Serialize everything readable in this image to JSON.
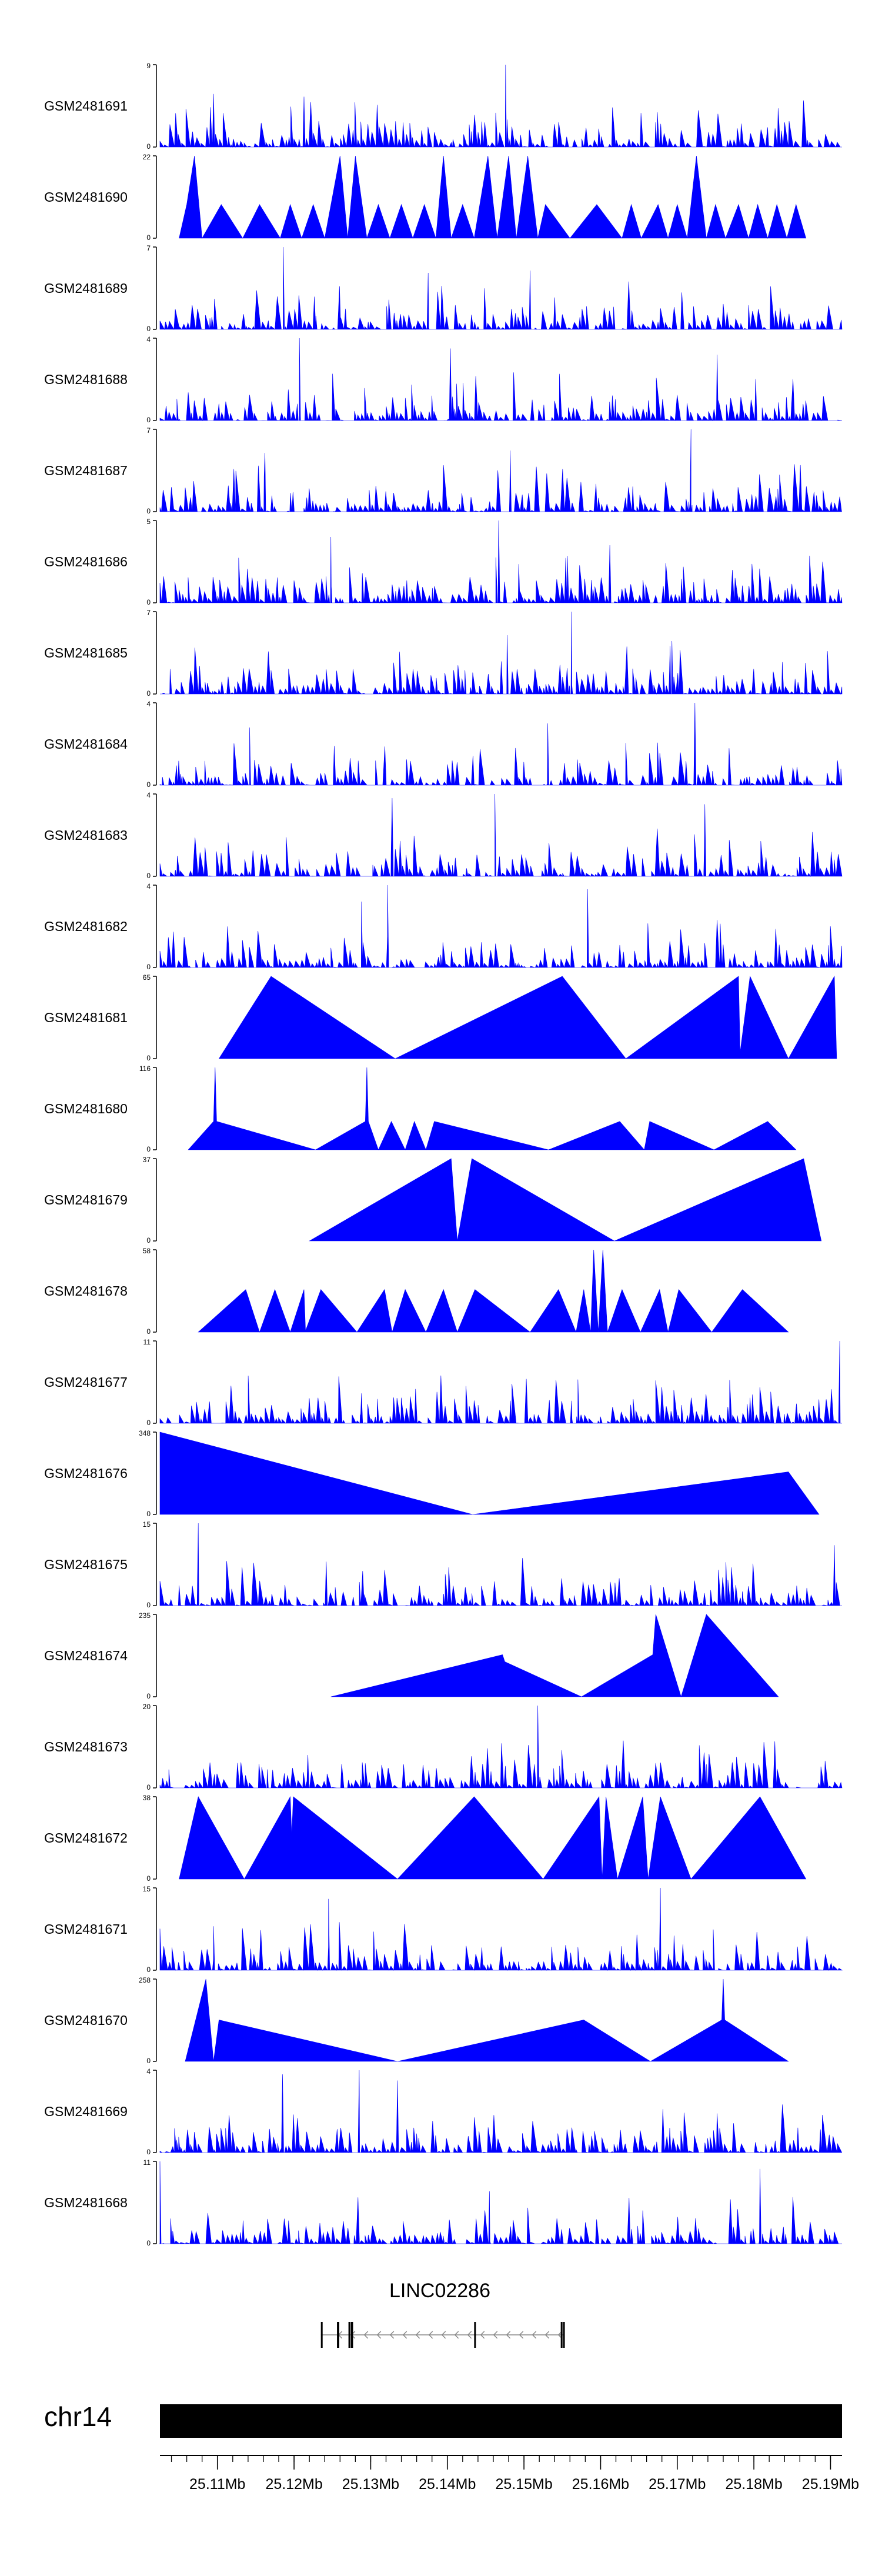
{
  "chart_data": {
    "type": "area",
    "figure": "coverage-tracks",
    "fill_color": "#0000ff",
    "axis_color": "#000000",
    "chromosome": "chr14",
    "genome_range_mb": [
      25.1025,
      25.1915
    ],
    "tracks": [
      {
        "name": "GSM2481691",
        "ymax": "9",
        "shape": "dense",
        "peaks": [
          [
            25.1476,
            9
          ],
          [
            25.1213,
            5.5
          ],
          [
            25.1095,
            5.8
          ]
        ]
      },
      {
        "name": "GSM2481690",
        "ymax": "22",
        "shape": "sparse",
        "points": [
          [
            25.105,
            0
          ],
          [
            25.106,
            9
          ],
          [
            25.107,
            22
          ],
          [
            25.108,
            0
          ],
          [
            25.1105,
            9
          ],
          [
            25.1133,
            0
          ],
          [
            25.1155,
            9
          ],
          [
            25.1182,
            0
          ],
          [
            25.1195,
            9
          ],
          [
            25.121,
            0
          ],
          [
            25.1225,
            9
          ],
          [
            25.124,
            0
          ],
          [
            25.126,
            22
          ],
          [
            25.127,
            0
          ],
          [
            25.128,
            22
          ],
          [
            25.1295,
            0
          ],
          [
            25.131,
            9
          ],
          [
            25.1325,
            0
          ],
          [
            25.134,
            9
          ],
          [
            25.1355,
            0
          ],
          [
            25.137,
            9
          ],
          [
            25.1385,
            0
          ],
          [
            25.1395,
            22
          ],
          [
            25.1405,
            0
          ],
          [
            25.142,
            9
          ],
          [
            25.1435,
            0
          ],
          [
            25.1453,
            22
          ],
          [
            25.1465,
            0
          ],
          [
            25.148,
            22
          ],
          [
            25.149,
            0
          ],
          [
            25.1505,
            22
          ],
          [
            25.1518,
            0
          ],
          [
            25.1528,
            9
          ],
          [
            25.156,
            0
          ],
          [
            25.1595,
            9
          ],
          [
            25.1628,
            0
          ],
          [
            25.164,
            9
          ],
          [
            25.1653,
            0
          ],
          [
            25.1675,
            9
          ],
          [
            25.1688,
            0
          ],
          [
            25.17,
            9
          ],
          [
            25.1713,
            0
          ],
          [
            25.1725,
            22
          ],
          [
            25.1738,
            0
          ],
          [
            25.175,
            9
          ],
          [
            25.1763,
            0
          ],
          [
            25.178,
            9
          ],
          [
            25.1793,
            0
          ],
          [
            25.1805,
            9
          ],
          [
            25.1818,
            0
          ],
          [
            25.183,
            9
          ],
          [
            25.1843,
            0
          ],
          [
            25.1855,
            9
          ],
          [
            25.1868,
            0
          ]
        ]
      },
      {
        "name": "GSM2481689",
        "ymax": "7",
        "shape": "dense",
        "peaks": [
          [
            25.1186,
            7
          ],
          [
            25.1508,
            5
          ],
          [
            25.1375,
            4.8
          ]
        ]
      },
      {
        "name": "GSM2481688",
        "ymax": "4",
        "shape": "dense",
        "peaks": [
          [
            25.1207,
            4
          ],
          [
            25.1404,
            3.5
          ],
          [
            25.1752,
            3.2
          ]
        ]
      },
      {
        "name": "GSM2481687",
        "ymax": "7",
        "shape": "dense",
        "peaks": [
          [
            25.1718,
            7
          ],
          [
            25.1482,
            5.2
          ],
          [
            25.1162,
            5
          ]
        ]
      },
      {
        "name": "GSM2481686",
        "ymax": "5",
        "shape": "dense",
        "peaks": [
          [
            25.1467,
            5
          ],
          [
            25.1248,
            4
          ],
          [
            25.1612,
            3.5
          ]
        ]
      },
      {
        "name": "GSM2481685",
        "ymax": "7",
        "shape": "dense",
        "peaks": [
          [
            25.1562,
            7
          ],
          [
            25.1478,
            5
          ],
          [
            25.1693,
            4.5
          ]
        ]
      },
      {
        "name": "GSM2481684",
        "ymax": "4",
        "shape": "dense",
        "peaks": [
          [
            25.1723,
            4
          ],
          [
            25.1531,
            3
          ],
          [
            25.1142,
            2.8
          ]
        ]
      },
      {
        "name": "GSM2481683",
        "ymax": "4",
        "shape": "dense",
        "peaks": [
          [
            25.1462,
            4
          ],
          [
            25.1328,
            3.8
          ],
          [
            25.1736,
            3.5
          ]
        ]
      },
      {
        "name": "GSM2481682",
        "ymax": "4",
        "shape": "dense",
        "peaks": [
          [
            25.1322,
            4
          ],
          [
            25.1583,
            3.8
          ],
          [
            25.1288,
            3.2
          ]
        ]
      },
      {
        "name": "GSM2481681",
        "ymax": "65",
        "shape": "sparse",
        "points": [
          [
            25.1102,
            0
          ],
          [
            25.117,
            65
          ],
          [
            25.1332,
            0
          ],
          [
            25.155,
            65
          ],
          [
            25.1633,
            0
          ],
          [
            25.178,
            65
          ],
          [
            25.1782,
            5
          ],
          [
            25.1795,
            65
          ],
          [
            25.1845,
            0
          ],
          [
            25.1905,
            65
          ],
          [
            25.1908,
            0
          ]
        ]
      },
      {
        "name": "GSM2481680",
        "ymax": "116",
        "shape": "sparse",
        "points": [
          [
            25.1062,
            0
          ],
          [
            25.1095,
            40
          ],
          [
            25.1097,
            116
          ],
          [
            25.1099,
            40
          ],
          [
            25.1228,
            0
          ],
          [
            25.1293,
            40
          ],
          [
            25.1295,
            116
          ],
          [
            25.1297,
            40
          ],
          [
            25.131,
            0
          ],
          [
            25.1327,
            40
          ],
          [
            25.1345,
            0
          ],
          [
            25.1357,
            40
          ],
          [
            25.1372,
            0
          ],
          [
            25.1383,
            40
          ],
          [
            25.1532,
            0
          ],
          [
            25.1625,
            40
          ],
          [
            25.1657,
            0
          ],
          [
            25.1664,
            40
          ],
          [
            25.1748,
            0
          ],
          [
            25.1818,
            40
          ],
          [
            25.1855,
            0
          ]
        ]
      },
      {
        "name": "GSM2481679",
        "ymax": "37",
        "shape": "sparse",
        "points": [
          [
            25.122,
            0
          ],
          [
            25.1405,
            37
          ],
          [
            25.1413,
            0
          ],
          [
            25.1432,
            37
          ],
          [
            25.1618,
            0
          ],
          [
            25.1865,
            37
          ],
          [
            25.1888,
            0
          ]
        ]
      },
      {
        "name": "GSM2481678",
        "ymax": "58",
        "shape": "sparse",
        "points": [
          [
            25.1075,
            0
          ],
          [
            25.1137,
            30
          ],
          [
            25.1155,
            0
          ],
          [
            25.1175,
            30
          ],
          [
            25.1195,
            0
          ],
          [
            25.1213,
            30
          ],
          [
            25.1215,
            1
          ],
          [
            25.1235,
            30
          ],
          [
            25.1282,
            0
          ],
          [
            25.1318,
            30
          ],
          [
            25.1328,
            0
          ],
          [
            25.1345,
            30
          ],
          [
            25.1372,
            0
          ],
          [
            25.1395,
            30
          ],
          [
            25.1413,
            0
          ],
          [
            25.1436,
            30
          ],
          [
            25.1508,
            0
          ],
          [
            25.1545,
            30
          ],
          [
            25.1568,
            0
          ],
          [
            25.1578,
            30
          ],
          [
            25.1587,
            0
          ],
          [
            25.1591,
            58
          ],
          [
            25.1597,
            0
          ],
          [
            25.1603,
            58
          ],
          [
            25.1609,
            0
          ],
          [
            25.1628,
            30
          ],
          [
            25.1652,
            0
          ],
          [
            25.1677,
            30
          ],
          [
            25.1688,
            0
          ],
          [
            25.1702,
            30
          ],
          [
            25.1745,
            0
          ],
          [
            25.1785,
            30
          ],
          [
            25.1845,
            0
          ]
        ]
      },
      {
        "name": "GSM2481677",
        "ymax": "11",
        "shape": "dense",
        "peaks": [
          [
            25.1912,
            11
          ],
          [
            25.1288,
            4
          ],
          [
            25.1562,
            3
          ]
        ]
      },
      {
        "name": "GSM2481676",
        "ymax": "348",
        "shape": "sparse",
        "points": [
          [
            25.1025,
            348
          ],
          [
            25.1433,
            0
          ],
          [
            25.1845,
            180
          ],
          [
            25.1885,
            0
          ]
        ]
      },
      {
        "name": "GSM2481675",
        "ymax": "15",
        "shape": "dense",
        "peaks": [
          [
            25.1075,
            15
          ],
          [
            25.1242,
            8
          ],
          [
            25.1905,
            11
          ]
        ]
      },
      {
        "name": "GSM2481674",
        "ymax": "235",
        "shape": "sparse",
        "points": [
          [
            25.1248,
            0
          ],
          [
            25.1472,
            120
          ],
          [
            25.1475,
            100
          ],
          [
            25.1575,
            0
          ],
          [
            25.1668,
            120
          ],
          [
            25.1672,
            235
          ],
          [
            25.1705,
            0
          ],
          [
            25.1738,
            235
          ],
          [
            25.1832,
            0
          ]
        ]
      },
      {
        "name": "GSM2481673",
        "ymax": "20",
        "shape": "dense",
        "peaks": [
          [
            25.1518,
            20
          ],
          [
            25.1218,
            8
          ],
          [
            25.1165,
            4.5
          ]
        ]
      },
      {
        "name": "GSM2481672",
        "ymax": "38",
        "shape": "sparse",
        "points": [
          [
            25.105,
            0
          ],
          [
            25.1075,
            38
          ],
          [
            25.1135,
            0
          ],
          [
            25.1195,
            38
          ],
          [
            25.1197,
            20
          ],
          [
            25.1199,
            38
          ],
          [
            25.1335,
            0
          ],
          [
            25.1435,
            38
          ],
          [
            25.1525,
            0
          ],
          [
            25.1598,
            38
          ],
          [
            25.1602,
            0
          ],
          [
            25.1607,
            38
          ],
          [
            25.1622,
            0
          ],
          [
            25.1655,
            38
          ],
          [
            25.1662,
            0
          ],
          [
            25.1678,
            38
          ],
          [
            25.1718,
            0
          ],
          [
            25.1808,
            38
          ],
          [
            25.1868,
            0
          ]
        ]
      },
      {
        "name": "GSM2481671",
        "ymax": "15",
        "shape": "dense",
        "peaks": [
          [
            25.1678,
            15
          ],
          [
            25.1245,
            13
          ],
          [
            25.1095,
            8
          ]
        ]
      },
      {
        "name": "GSM2481670",
        "ymax": "258",
        "shape": "sparse",
        "points": [
          [
            25.1058,
            0
          ],
          [
            25.1085,
            258
          ],
          [
            25.1095,
            0
          ],
          [
            25.1102,
            130
          ],
          [
            25.1335,
            0
          ],
          [
            25.1578,
            130
          ],
          [
            25.1665,
            0
          ],
          [
            25.1758,
            130
          ],
          [
            25.176,
            258
          ],
          [
            25.1762,
            130
          ],
          [
            25.1845,
            0
          ]
        ]
      },
      {
        "name": "GSM2481669",
        "ymax": "4",
        "shape": "dense",
        "peaks": [
          [
            25.1285,
            4
          ],
          [
            25.1185,
            3.8
          ],
          [
            25.1335,
            3.5
          ]
        ]
      },
      {
        "name": "GSM2481668",
        "ymax": "11",
        "shape": "dense",
        "peaks": [
          [
            25.1025,
            11
          ],
          [
            25.1808,
            10
          ],
          [
            25.1455,
            7
          ]
        ]
      }
    ],
    "gene": {
      "name": "LINC02286",
      "strand": "-",
      "start_mb": 25.1235,
      "end_mb": 25.1553,
      "exons_mb": [
        [
          25.1235,
          25.1237
        ],
        [
          25.1256,
          25.1259
        ],
        [
          25.1274,
          25.1277
        ],
        [
          25.1271,
          25.1273
        ],
        [
          25.1435,
          25.1437
        ],
        [
          25.1548,
          25.155
        ],
        [
          25.1551,
          25.1553
        ]
      ]
    },
    "axis": {
      "label": "chr14",
      "ticks_mb": [
        25.11,
        25.12,
        25.13,
        25.14,
        25.15,
        25.16,
        25.17,
        25.18,
        25.19
      ],
      "tick_labels": [
        "25.11Mb",
        "25.12Mb",
        "25.13Mb",
        "25.14Mb",
        "25.15Mb",
        "25.16Mb",
        "25.17Mb",
        "25.18Mb",
        "25.19Mb"
      ],
      "minor_tick_step_mb": 0.002,
      "zero_label": "0"
    }
  }
}
